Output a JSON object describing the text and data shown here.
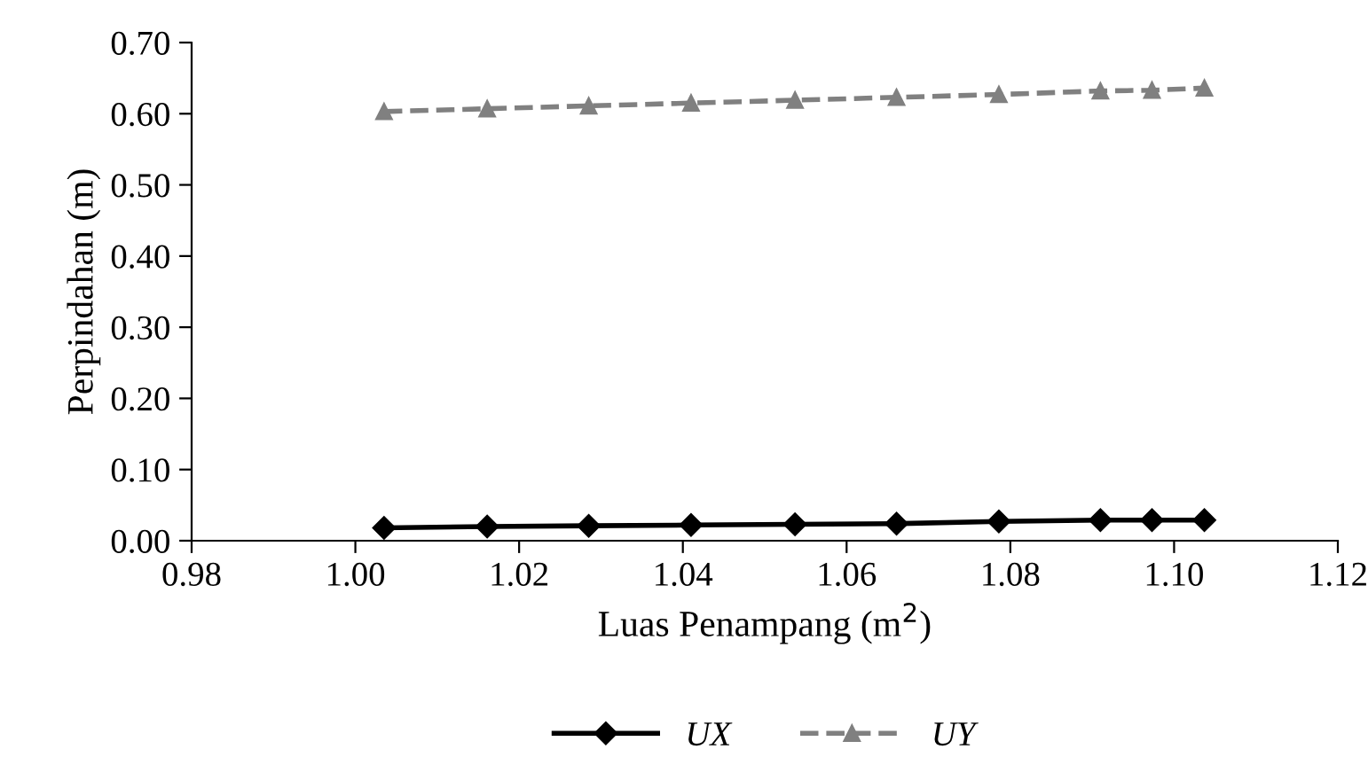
{
  "chart_data": {
    "type": "line",
    "xlabel": "Luas Penampang (m$^{2}$)",
    "ylabel": "Perpindahan (m)",
    "x": [
      1.0035,
      1.0161,
      1.0285,
      1.041,
      1.0537,
      1.0661,
      1.0786,
      1.091,
      1.0973,
      1.1037
    ],
    "series": [
      {
        "name": "UX",
        "color": "#000000",
        "marker": "diamond",
        "line_style": "solid",
        "values": [
          0.018,
          0.02,
          0.021,
          0.022,
          0.023,
          0.024,
          0.027,
          0.029,
          0.029,
          0.029
        ]
      },
      {
        "name": "UY",
        "color": "#808080",
        "marker": "triangle",
        "line_style": "dashed",
        "values": [
          0.603,
          0.607,
          0.611,
          0.615,
          0.619,
          0.623,
          0.627,
          0.632,
          0.633,
          0.636
        ]
      }
    ],
    "xlim": [
      0.98,
      1.12
    ],
    "xticks": [
      0.98,
      {
        "value": 1.0,
        "label": "1.00"
      },
      1.02,
      1.04,
      1.06,
      1.08,
      {
        "value": 1.1,
        "label": "1.10"
      },
      1.12
    ],
    "ylim": [
      0,
      0.7
    ],
    "yticks": [
      {
        "value": 0,
        "label": "0.00"
      },
      {
        "value": 0.1,
        "label": "0.10"
      },
      {
        "value": 0.2,
        "label": "0.20"
      },
      {
        "value": 0.3,
        "label": "0.30"
      },
      {
        "value": 0.4,
        "label": "0.40"
      },
      {
        "value": 0.5,
        "label": "0.50"
      },
      {
        "value": 0.6,
        "label": "0.60"
      },
      {
        "value": 0.7,
        "label": "0.70"
      }
    ],
    "grid": false,
    "legend": "bottom"
  }
}
